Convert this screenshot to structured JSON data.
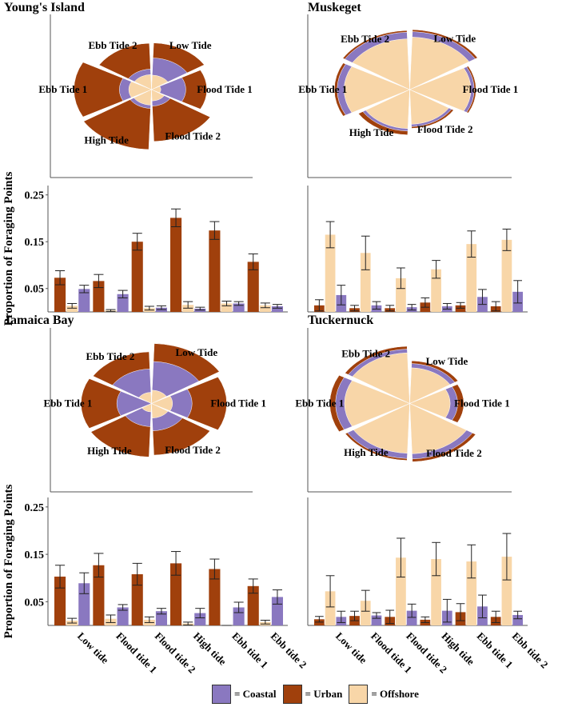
{
  "colors": {
    "coastal": "#8a78c0",
    "urban": "#a0400c",
    "offshore": "#f8d6a8"
  },
  "legend": [
    {
      "key": "coastal",
      "label": "= Coastal"
    },
    {
      "key": "urban",
      "label": "= Urban"
    },
    {
      "key": "offshore",
      "label": "= Offshore"
    }
  ],
  "chart_data": [
    {
      "type": "bar",
      "title": "Young's Island",
      "ylabel": "Proportion of Foraging Points",
      "ylim": [
        0,
        0.27
      ],
      "yticks": [
        "0.05",
        "0.15",
        "0.25"
      ],
      "categories": [
        "Low tide",
        "Flood tide 1",
        "Flood tide 2",
        "High tide",
        "Ebb tide 1",
        "Ebb tide 2"
      ],
      "rose_labels": [
        "Low Tide",
        "Flood Tide 1",
        "Flood Tide 2",
        "High Tide",
        "Ebb Tide 1",
        "Ebb Tide 2"
      ],
      "series": [
        {
          "name": "Urban",
          "values": [
            0.073,
            0.066,
            0.15,
            0.201,
            0.174,
            0.107
          ],
          "err": [
            0.015,
            0.014,
            0.018,
            0.019,
            0.019,
            0.017
          ]
        },
        {
          "name": "Offshore",
          "values": [
            0.013,
            0.003,
            0.008,
            0.015,
            0.018,
            0.014
          ],
          "err": [
            0.005,
            0.002,
            0.004,
            0.007,
            0.005,
            0.005
          ]
        },
        {
          "name": "Coastal",
          "values": [
            0.049,
            0.038,
            0.009,
            0.007,
            0.018,
            0.012
          ],
          "err": [
            0.008,
            0.008,
            0.004,
            0.003,
            0.004,
            0.004
          ]
        }
      ]
    },
    {
      "type": "bar",
      "title": "Muskeget",
      "ylabel": "",
      "ylim": [
        0,
        0.27
      ],
      "yticks": [],
      "categories": [
        "Low tide",
        "Flood tide 1",
        "Flood tide 2",
        "High tide",
        "Ebb tide 1",
        "Ebb tide 2"
      ],
      "rose_labels": [
        "Low Tide",
        "Flood Tide 1",
        "Flood Tide 2",
        "High Tide",
        "Ebb Tide 1",
        "Ebb Tide 2"
      ],
      "series": [
        {
          "name": "Urban",
          "values": [
            0.014,
            0.008,
            0.008,
            0.02,
            0.014,
            0.012
          ],
          "err": [
            0.012,
            0.006,
            0.006,
            0.01,
            0.006,
            0.01
          ]
        },
        {
          "name": "Offshore",
          "values": [
            0.165,
            0.126,
            0.072,
            0.091,
            0.145,
            0.154
          ],
          "err": [
            0.028,
            0.036,
            0.022,
            0.019,
            0.028,
            0.023
          ]
        },
        {
          "name": "Coastal",
          "values": [
            0.036,
            0.014,
            0.01,
            0.012,
            0.032,
            0.043
          ],
          "err": [
            0.021,
            0.008,
            0.006,
            0.006,
            0.016,
            0.024
          ]
        }
      ]
    },
    {
      "type": "bar",
      "title": "Jamaica Bay",
      "ylabel": "Proportion of Foraging Points",
      "ylim": [
        0,
        0.27
      ],
      "yticks": [
        "0.05",
        "0.15",
        "0.25"
      ],
      "categories": [
        "Low tide",
        "Flood tide 1",
        "Flood tide 2",
        "High tide",
        "Ebb tide 1",
        "Ebb tide 2"
      ],
      "rose_labels": [
        "Low Tide",
        "Flood Tide 1",
        "Flood Tide 2",
        "High Tide",
        "Ebb Tide 1",
        "Ebb Tide 2"
      ],
      "series": [
        {
          "name": "Urban",
          "values": [
            0.103,
            0.127,
            0.108,
            0.131,
            0.119,
            0.083
          ],
          "err": [
            0.024,
            0.025,
            0.023,
            0.025,
            0.021,
            0.015
          ]
        },
        {
          "name": "Offshore",
          "values": [
            0.01,
            0.014,
            0.012,
            0.004,
            0.0,
            0.007
          ],
          "err": [
            0.005,
            0.008,
            0.006,
            0.003,
            0.0,
            0.004
          ]
        },
        {
          "name": "Coastal",
          "values": [
            0.089,
            0.038,
            0.03,
            0.026,
            0.038,
            0.06
          ],
          "err": [
            0.022,
            0.006,
            0.006,
            0.01,
            0.011,
            0.015
          ]
        }
      ]
    },
    {
      "type": "bar",
      "title": "Tuckernuck",
      "ylabel": "",
      "ylim": [
        0,
        0.27
      ],
      "yticks": [],
      "categories": [
        "Low tide",
        "Flood tide 1",
        "Flood tide 2",
        "High tide",
        "Ebb tide 1",
        "Ebb tide 2"
      ],
      "rose_labels": [
        "Low Tide",
        "Flood Tide 1",
        "Flood Tide 2",
        "High Tide",
        "Ebb Tide 1",
        "Ebb Tide 2"
      ],
      "series": [
        {
          "name": "Urban",
          "values": [
            0.013,
            0.02,
            0.018,
            0.012,
            0.028,
            0.018
          ],
          "err": [
            0.006,
            0.01,
            0.014,
            0.006,
            0.018,
            0.012
          ]
        },
        {
          "name": "Offshore",
          "values": [
            0.072,
            0.052,
            0.143,
            0.14,
            0.135,
            0.145
          ],
          "err": [
            0.033,
            0.022,
            0.041,
            0.035,
            0.035,
            0.049
          ]
        },
        {
          "name": "Coastal",
          "values": [
            0.018,
            0.021,
            0.031,
            0.031,
            0.04,
            0.022
          ],
          "err": [
            0.012,
            0.006,
            0.014,
            0.024,
            0.024,
            0.008
          ]
        }
      ]
    }
  ]
}
